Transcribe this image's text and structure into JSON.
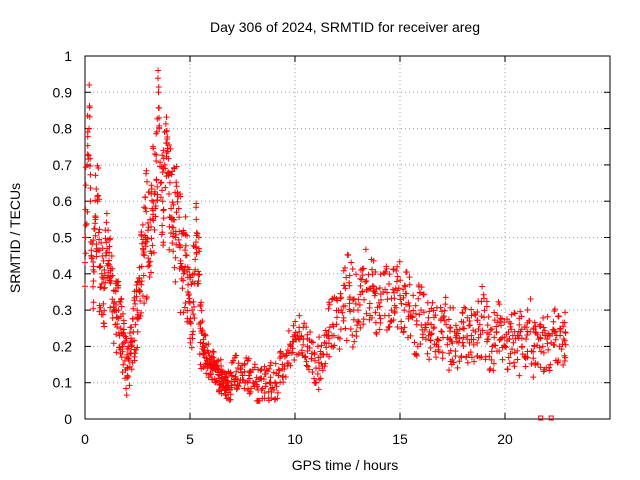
{
  "chart_data": {
    "type": "scatter",
    "title": "Day 306 of 2024, SRMTID for receiver areg",
    "xlabel": "GPS time / hours",
    "ylabel": "SRMTID / TECUs",
    "xlim": [
      0,
      25
    ],
    "ylim": [
      0,
      1
    ],
    "xticks": [
      0,
      5,
      10,
      15,
      20
    ],
    "xtick_labels": [
      "0",
      "5",
      "10",
      "15",
      "20"
    ],
    "yticks": [
      0,
      0.1,
      0.2,
      0.3,
      0.4,
      0.5,
      0.6,
      0.7,
      0.8,
      0.9,
      1
    ],
    "ytick_labels": [
      "0",
      "0.1",
      "0.2",
      "0.3",
      "0.4",
      "0.5",
      "0.6",
      "0.7",
      "0.8",
      "0.9",
      "1"
    ],
    "grid": true,
    "legend": "none",
    "marker": "+",
    "color": "#ff0000",
    "series": [
      {
        "name": "SRMTID",
        "x": [
          0.0,
          0.1,
          0.2,
          0.3,
          0.4,
          0.5,
          0.6,
          0.7,
          0.8,
          0.9,
          1.0,
          1.1,
          1.2,
          1.3,
          1.4,
          1.5,
          1.6,
          1.7,
          1.8,
          1.9,
          2.0,
          2.1,
          2.2,
          2.3,
          2.4,
          2.5,
          2.6,
          2.7,
          2.8,
          2.9,
          3.0,
          3.1,
          3.2,
          3.3,
          3.4,
          3.5,
          3.6,
          3.7,
          3.8,
          3.9,
          4.0,
          4.1,
          4.2,
          4.3,
          4.4,
          4.5,
          4.6,
          4.7,
          4.8,
          4.9,
          5.0,
          5.1,
          5.2,
          5.3,
          5.4,
          5.5,
          5.6,
          5.7,
          5.8,
          5.9,
          6.0,
          6.1,
          6.2,
          6.3,
          6.4,
          6.5,
          6.6,
          6.7,
          6.8,
          6.9,
          7.0,
          7.2,
          7.4,
          7.6,
          7.8,
          8.0,
          8.2,
          8.4,
          8.6,
          8.8,
          9.0,
          9.2,
          9.4,
          9.6,
          9.8,
          10.0,
          10.2,
          10.4,
          10.6,
          10.8,
          11.0,
          11.2,
          11.4,
          11.6,
          11.8,
          12.0,
          12.2,
          12.4,
          12.6,
          12.8,
          13.0,
          13.2,
          13.4,
          13.6,
          13.8,
          14.0,
          14.2,
          14.4,
          14.6,
          14.8,
          15.0,
          15.2,
          15.4,
          15.6,
          15.8,
          16.0,
          16.2,
          16.4,
          16.6,
          16.8,
          17.0,
          17.2,
          17.4,
          17.6,
          17.8,
          18.0,
          18.2,
          18.4,
          18.6,
          18.8,
          19.0,
          19.2,
          19.4,
          19.6,
          19.8,
          20.0,
          20.2,
          20.4,
          20.6,
          20.8,
          21.0,
          21.2,
          21.4,
          21.6,
          21.8,
          22.0,
          22.2,
          22.4,
          22.6,
          22.8
        ],
        "y": [
          0.5,
          0.7,
          0.92,
          0.45,
          0.38,
          0.55,
          0.6,
          0.42,
          0.4,
          0.36,
          0.45,
          0.52,
          0.38,
          0.33,
          0.3,
          0.28,
          0.3,
          0.25,
          0.2,
          0.16,
          0.14,
          0.16,
          0.2,
          0.24,
          0.26,
          0.28,
          0.35,
          0.42,
          0.46,
          0.5,
          0.52,
          0.55,
          0.58,
          0.62,
          0.66,
          0.9,
          0.65,
          0.6,
          0.7,
          0.76,
          0.62,
          0.58,
          0.55,
          0.5,
          0.62,
          0.48,
          0.42,
          0.4,
          0.45,
          0.35,
          0.32,
          0.3,
          0.4,
          0.55,
          0.38,
          0.25,
          0.2,
          0.18,
          0.16,
          0.15,
          0.14,
          0.16,
          0.15,
          0.14,
          0.12,
          0.11,
          0.1,
          0.09,
          0.1,
          0.08,
          0.12,
          0.13,
          0.14,
          0.13,
          0.12,
          0.1,
          0.09,
          0.08,
          0.09,
          0.1,
          0.08,
          0.12,
          0.15,
          0.18,
          0.2,
          0.22,
          0.24,
          0.22,
          0.2,
          0.18,
          0.14,
          0.17,
          0.21,
          0.24,
          0.26,
          0.28,
          0.3,
          0.36,
          0.33,
          0.3,
          0.3,
          0.35,
          0.38,
          0.36,
          0.34,
          0.32,
          0.35,
          0.33,
          0.3,
          0.36,
          0.34,
          0.3,
          0.32,
          0.28,
          0.26,
          0.3,
          0.26,
          0.24,
          0.25,
          0.22,
          0.24,
          0.26,
          0.22,
          0.24,
          0.21,
          0.25,
          0.22,
          0.23,
          0.24,
          0.26,
          0.28,
          0.22,
          0.2,
          0.24,
          0.22,
          0.2,
          0.22,
          0.21,
          0.23,
          0.2,
          0.22,
          0.24,
          0.2,
          0.22,
          0.2,
          0.22,
          0.21,
          0.24,
          0.2,
          0.22
        ],
        "spread": [
          0.14,
          0.2,
          0.1,
          0.12,
          0.1,
          0.14,
          0.16,
          0.16,
          0.12,
          0.12,
          0.12,
          0.12,
          0.12,
          0.1,
          0.1,
          0.1,
          0.1,
          0.1,
          0.1,
          0.08,
          0.07,
          0.08,
          0.08,
          0.1,
          0.1,
          0.1,
          0.14,
          0.14,
          0.16,
          0.18,
          0.16,
          0.16,
          0.16,
          0.16,
          0.18,
          0.06,
          0.16,
          0.16,
          0.1,
          0.06,
          0.16,
          0.18,
          0.18,
          0.18,
          0.08,
          0.16,
          0.16,
          0.14,
          0.14,
          0.12,
          0.12,
          0.12,
          0.14,
          0.08,
          0.16,
          0.1,
          0.06,
          0.06,
          0.06,
          0.05,
          0.05,
          0.05,
          0.05,
          0.05,
          0.05,
          0.04,
          0.04,
          0.04,
          0.04,
          0.04,
          0.05,
          0.05,
          0.05,
          0.05,
          0.05,
          0.06,
          0.06,
          0.06,
          0.06,
          0.06,
          0.06,
          0.06,
          0.06,
          0.06,
          0.06,
          0.06,
          0.06,
          0.06,
          0.06,
          0.07,
          0.08,
          0.08,
          0.08,
          0.08,
          0.08,
          0.1,
          0.1,
          0.2,
          0.12,
          0.1,
          0.1,
          0.1,
          0.1,
          0.1,
          0.1,
          0.1,
          0.1,
          0.1,
          0.1,
          0.1,
          0.08,
          0.1,
          0.1,
          0.1,
          0.1,
          0.1,
          0.08,
          0.08,
          0.08,
          0.08,
          0.08,
          0.1,
          0.08,
          0.08,
          0.08,
          0.1,
          0.08,
          0.08,
          0.08,
          0.1,
          0.1,
          0.08,
          0.08,
          0.1,
          0.08,
          0.08,
          0.08,
          0.08,
          0.1,
          0.08,
          0.08,
          0.1,
          0.08,
          0.08,
          0.08,
          0.08,
          0.08,
          0.1,
          0.08,
          0.08
        ]
      }
    ],
    "zero_markers": [
      {
        "x": 21.7,
        "y": 0.0
      },
      {
        "x": 22.2,
        "y": 0.0
      }
    ]
  }
}
